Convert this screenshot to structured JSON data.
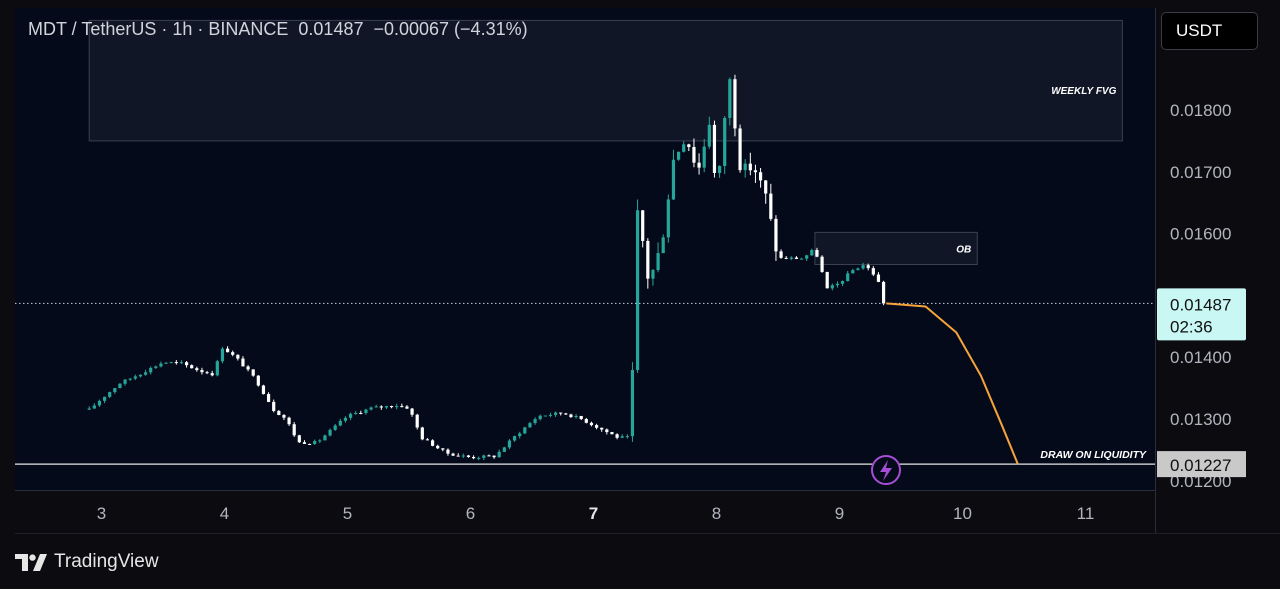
{
  "header": {
    "symbol_line": "MDT / TetherUS · 1h · BINANCE  0.01487  −0.00067 (−4.31%)",
    "currency_button": "USDT"
  },
  "branding": {
    "logo_text": "TradingView",
    "logo_icon": "tradingview-logo-icon"
  },
  "colors": {
    "background": "#0c0c10",
    "plot_background": "#050a1a",
    "candle_up": "#26a69a",
    "candle_down": "#ffffff",
    "projection_line": "#f5a43a",
    "price_tag": "#c8f7f4",
    "liquidity_tag": "#c9c9c9",
    "lightning_badge": "#a64dd6"
  },
  "chart_data": {
    "type": "candlestick",
    "symbol": "MDT / TetherUS",
    "interval": "1h",
    "exchange": "BINANCE",
    "quote_currency": "USDT",
    "last_price": 0.01487,
    "change": -0.00067,
    "change_pct": -4.31,
    "countdown": "02:36",
    "x_ticks": [
      "3",
      "4",
      "5",
      "6",
      "7",
      "8",
      "9",
      "10",
      "11"
    ],
    "y_ticks": [
      "0.01200",
      "0.01300",
      "0.01400",
      "0.01500",
      "0.01600",
      "0.01700",
      "0.01800"
    ],
    "ylim": [
      0.0118,
      0.0196
    ],
    "close_path": [
      {
        "d": 2.9,
        "p": 0.01315
      },
      {
        "d": 3.0,
        "p": 0.01333
      },
      {
        "d": 3.15,
        "p": 0.01358
      },
      {
        "d": 3.3,
        "p": 0.01372
      },
      {
        "d": 3.5,
        "p": 0.01392
      },
      {
        "d": 3.65,
        "p": 0.0139
      },
      {
        "d": 3.8,
        "p": 0.01378
      },
      {
        "d": 3.92,
        "p": 0.01372
      },
      {
        "d": 3.97,
        "p": 0.01418
      },
      {
        "d": 4.1,
        "p": 0.01398
      },
      {
        "d": 4.25,
        "p": 0.01365
      },
      {
        "d": 4.4,
        "p": 0.01315
      },
      {
        "d": 4.5,
        "p": 0.013
      },
      {
        "d": 4.6,
        "p": 0.01262
      },
      {
        "d": 4.75,
        "p": 0.01262
      },
      {
        "d": 5.0,
        "p": 0.01305
      },
      {
        "d": 5.2,
        "p": 0.01318
      },
      {
        "d": 5.4,
        "p": 0.01322
      },
      {
        "d": 5.5,
        "p": 0.01318
      },
      {
        "d": 5.6,
        "p": 0.0127
      },
      {
        "d": 5.8,
        "p": 0.01245
      },
      {
        "d": 6.0,
        "p": 0.01238
      },
      {
        "d": 6.2,
        "p": 0.0124
      },
      {
        "d": 6.35,
        "p": 0.0127
      },
      {
        "d": 6.55,
        "p": 0.01305
      },
      {
        "d": 6.75,
        "p": 0.0131
      },
      {
        "d": 6.9,
        "p": 0.013
      },
      {
        "d": 7.1,
        "p": 0.0128
      },
      {
        "d": 7.2,
        "p": 0.0127
      },
      {
        "d": 7.3,
        "p": 0.0127
      },
      {
        "d": 7.36,
        "p": 0.0164
      },
      {
        "d": 7.45,
        "p": 0.0152
      },
      {
        "d": 7.55,
        "p": 0.0158
      },
      {
        "d": 7.65,
        "p": 0.0172
      },
      {
        "d": 7.75,
        "p": 0.0176
      },
      {
        "d": 7.85,
        "p": 0.017
      },
      {
        "d": 7.95,
        "p": 0.0179
      },
      {
        "d": 8.0,
        "p": 0.0165
      },
      {
        "d": 8.1,
        "p": 0.0186
      },
      {
        "d": 8.2,
        "p": 0.017
      },
      {
        "d": 8.3,
        "p": 0.0171
      },
      {
        "d": 8.4,
        "p": 0.0166
      },
      {
        "d": 8.5,
        "p": 0.0156
      },
      {
        "d": 8.6,
        "p": 0.0156
      },
      {
        "d": 8.7,
        "p": 0.0156
      },
      {
        "d": 8.8,
        "p": 0.01575
      },
      {
        "d": 8.9,
        "p": 0.0151
      },
      {
        "d": 9.0,
        "p": 0.0152
      },
      {
        "d": 9.1,
        "p": 0.0154
      },
      {
        "d": 9.2,
        "p": 0.0155
      },
      {
        "d": 9.3,
        "p": 0.0153
      },
      {
        "d": 9.38,
        "p": 0.01487
      }
    ],
    "current_price_line": 0.01487,
    "liquidity_level": 0.01227,
    "liquidity_tag": "0.01227",
    "zones": [
      {
        "label": "WEEKLY FVG",
        "d_start": 2.9,
        "d_end": 11.3,
        "p_low": 0.0175,
        "p_high": 0.01945
      },
      {
        "label": "OB",
        "d_start": 8.8,
        "d_end": 10.12,
        "p_low": 0.0155,
        "p_high": 0.01602
      }
    ],
    "annotations": [
      {
        "label": "DRAW ON LIQUIDITY"
      }
    ],
    "projection": [
      {
        "d": 9.38,
        "p": 0.01487
      },
      {
        "d": 9.7,
        "p": 0.01482
      },
      {
        "d": 9.95,
        "p": 0.0144
      },
      {
        "d": 10.15,
        "p": 0.0137
      },
      {
        "d": 10.32,
        "p": 0.0129
      },
      {
        "d": 10.45,
        "p": 0.01227
      }
    ]
  }
}
